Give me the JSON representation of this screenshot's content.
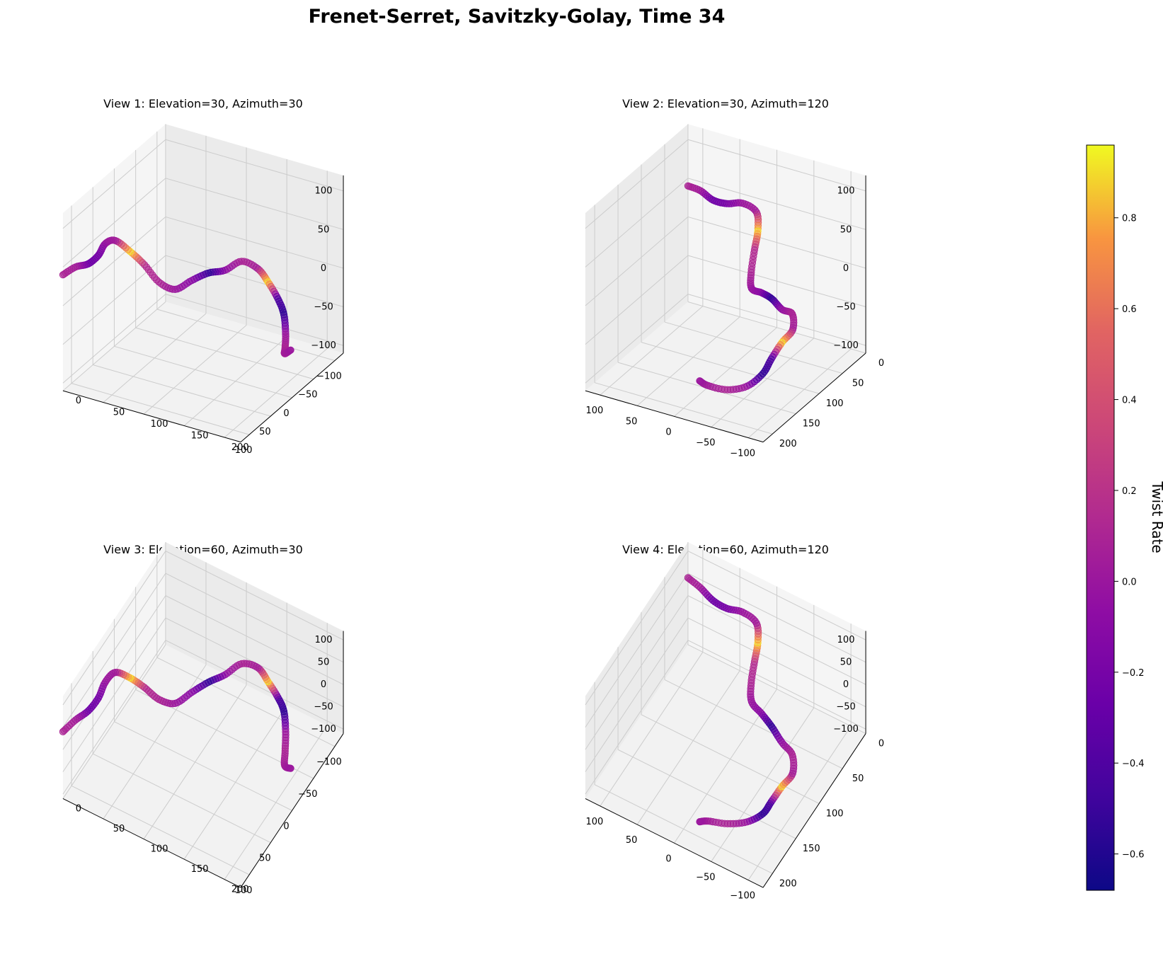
{
  "title": "Frenet-Serret, Savitzky-Golay, Time 34",
  "views": [
    {
      "title": "View 1: Elevation=30, Azimuth=30",
      "elevation": 30,
      "azimuth": 30
    },
    {
      "title": "View 2: Elevation=30, Azimuth=120",
      "elevation": 30,
      "azimuth": 120
    },
    {
      "title": "View 3: Elevation=60, Azimuth=30",
      "elevation": 60,
      "azimuth": 30
    },
    {
      "title": "View 4: Elevation=60, Azimuth=120",
      "elevation": 60,
      "azimuth": 120
    }
  ],
  "colorbar": {
    "label": "Twist Rate",
    "colormap": "plasma",
    "range": [
      -0.68,
      0.96
    ],
    "ticks": [
      "−0.6",
      "−0.4",
      "−0.2",
      "0.0",
      "0.2",
      "0.4",
      "0.6",
      "0.8"
    ]
  },
  "chart_data": {
    "type": "scatter",
    "projection": "3d",
    "x_ticks": [
      "−100",
      "−50",
      "0",
      "50",
      "100"
    ],
    "y_ticks": [
      "0",
      "50",
      "100",
      "150",
      "200"
    ],
    "z_ticks": [
      "−100",
      "−50",
      "0",
      "50",
      "100"
    ],
    "xlim": [
      -120,
      120
    ],
    "ylim": [
      0,
      220
    ],
    "zlim": [
      -110,
      120
    ],
    "grid": true,
    "color_by": "twist rate",
    "points": [
      {
        "x": 120,
        "y": 0,
        "z": 40,
        "c": 0.1
      },
      {
        "x": 100,
        "y": 5,
        "z": 42,
        "c": 0.05
      },
      {
        "x": 80,
        "y": 10,
        "z": 38,
        "c": -0.25
      },
      {
        "x": 60,
        "y": 12,
        "z": 40,
        "c": -0.2
      },
      {
        "x": 40,
        "y": 10,
        "z": 45,
        "c": 0.0
      },
      {
        "x": 20,
        "y": 12,
        "z": 40,
        "c": 0.05
      },
      {
        "x": 10,
        "y": 25,
        "z": 25,
        "c": 0.9
      },
      {
        "x": 5,
        "y": 40,
        "z": 10,
        "c": 0.15
      },
      {
        "x": 0,
        "y": 55,
        "z": -10,
        "c": 0.1
      },
      {
        "x": -10,
        "y": 70,
        "z": -20,
        "c": 0.0
      },
      {
        "x": -30,
        "y": 80,
        "z": -15,
        "c": -0.1
      },
      {
        "x": -50,
        "y": 90,
        "z": -12,
        "c": -0.55
      },
      {
        "x": -70,
        "y": 100,
        "z": -15,
        "c": -0.05
      },
      {
        "x": -90,
        "y": 110,
        "z": -10,
        "c": 0.1
      },
      {
        "x": -100,
        "y": 125,
        "z": -20,
        "c": 0.05
      },
      {
        "x": -95,
        "y": 140,
        "z": -30,
        "c": 0.9
      },
      {
        "x": -90,
        "y": 155,
        "z": -45,
        "c": -0.4
      },
      {
        "x": -85,
        "y": 165,
        "z": -60,
        "c": -0.55
      },
      {
        "x": -70,
        "y": 175,
        "z": -75,
        "c": 0.0
      },
      {
        "x": -50,
        "y": 185,
        "z": -80,
        "c": 0.1
      },
      {
        "x": -30,
        "y": 195,
        "z": -75,
        "c": 0.05
      },
      {
        "x": -25,
        "y": 205,
        "z": -65,
        "c": 0.0
      }
    ]
  }
}
